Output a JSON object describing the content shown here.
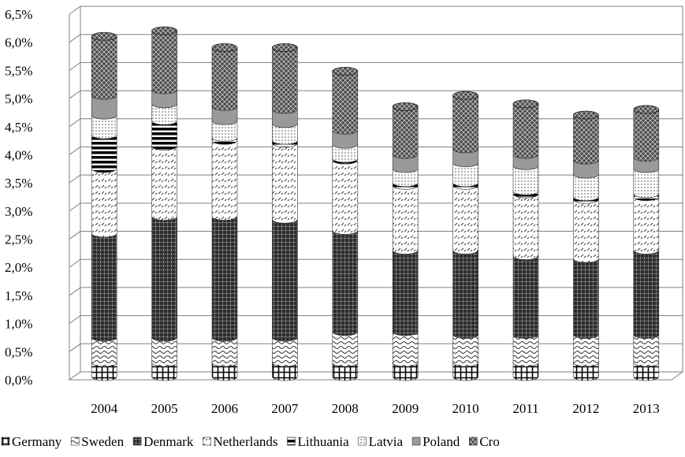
{
  "chart_data": {
    "type": "bar",
    "stacked": true,
    "title": "",
    "xlabel": "",
    "ylabel": "",
    "ylim": [
      0,
      0.065
    ],
    "ytick_values": [
      0,
      0.005,
      0.01,
      0.015,
      0.02,
      0.025,
      0.03,
      0.035,
      0.04,
      0.045,
      0.05,
      0.055,
      0.06,
      0.065
    ],
    "ytick_labels": [
      "0,0%",
      "0,5%",
      "1,0%",
      "1,5%",
      "2,0%",
      "2,5%",
      "3,0%",
      "3,5%",
      "4,0%",
      "4,5%",
      "5,0%",
      "5,5%",
      "6,0%",
      "6,5%"
    ],
    "grid": true,
    "legend_position": "bottom",
    "categories": [
      "2004",
      "2005",
      "2006",
      "2007",
      "2008",
      "2009",
      "2010",
      "2011",
      "2012",
      "2013"
    ],
    "series": [
      {
        "name": "Germany",
        "color": "#ffffff",
        "pattern": "grid",
        "values": [
          0.0025,
          0.0025,
          0.0025,
          0.0025,
          0.0025,
          0.0025,
          0.0025,
          0.0025,
          0.0025,
          0.0025
        ]
      },
      {
        "name": "Sweden",
        "color": "#ffffff",
        "pattern": "wave",
        "values": [
          0.0045,
          0.0045,
          0.0045,
          0.0045,
          0.0055,
          0.0055,
          0.005,
          0.005,
          0.005,
          0.005
        ]
      },
      {
        "name": "Denmark",
        "color": "#5a5a5a",
        "pattern": "dense",
        "values": [
          0.0185,
          0.0215,
          0.0215,
          0.021,
          0.018,
          0.0145,
          0.015,
          0.014,
          0.0135,
          0.015
        ]
      },
      {
        "name": "Netherlands",
        "color": "#ffffff",
        "pattern": "dash",
        "values": [
          0.0115,
          0.0125,
          0.0135,
          0.0135,
          0.0125,
          0.0115,
          0.0115,
          0.011,
          0.0105,
          0.0095
        ]
      },
      {
        "name": "Lithuania",
        "color": "#000000",
        "pattern": "stripes",
        "values": [
          0.006,
          0.0045,
          0.0005,
          0.0005,
          0.0003,
          0.0005,
          0.0005,
          0.0005,
          0.0005,
          0.0005
        ]
      },
      {
        "name": "Latvia",
        "color": "#dddddd",
        "pattern": "dots",
        "values": [
          0.0035,
          0.003,
          0.003,
          0.003,
          0.0025,
          0.0025,
          0.0035,
          0.0045,
          0.004,
          0.0045
        ]
      },
      {
        "name": "Poland",
        "color": "#9a9a9a",
        "pattern": "solid",
        "values": [
          0.0035,
          0.0025,
          0.0025,
          0.0025,
          0.0025,
          0.0025,
          0.0025,
          0.002,
          0.0025,
          0.002
        ]
      },
      {
        "name": "Cro",
        "color": "#555555",
        "pattern": "cross",
        "values": [
          0.0105,
          0.0105,
          0.0105,
          0.011,
          0.0105,
          0.0085,
          0.0095,
          0.009,
          0.008,
          0.0085
        ]
      }
    ]
  }
}
